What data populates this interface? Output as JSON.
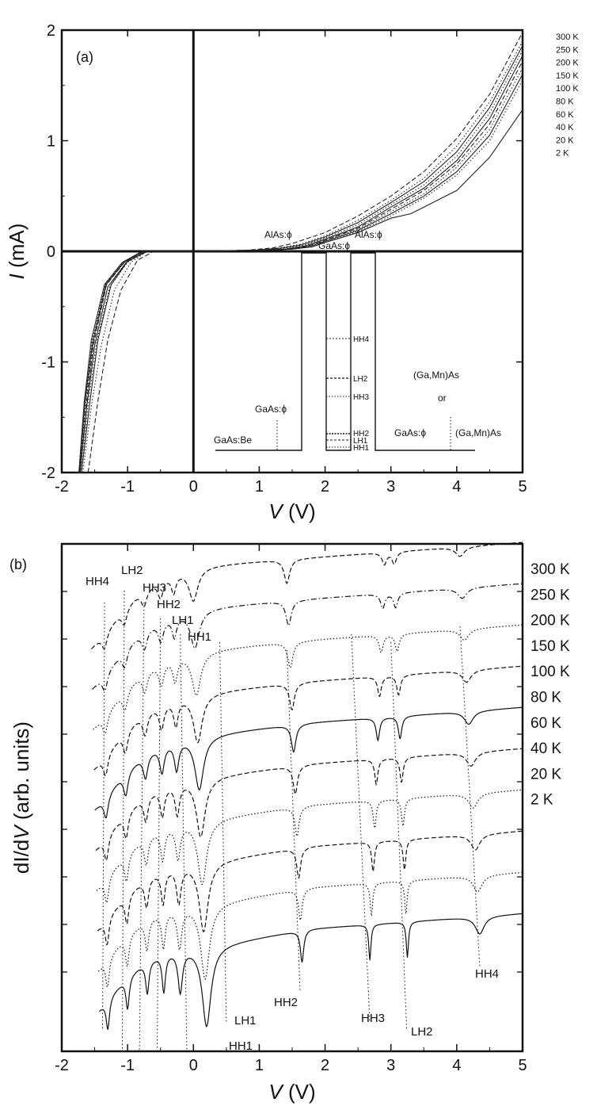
{
  "chart_data": [
    {
      "panel": "(a)",
      "type": "line",
      "xlabel_italic": "V",
      "xlabel_unit": "(V)",
      "ylabel_italic": "I",
      "ylabel_unit": "(mA)",
      "xlim": [
        -2,
        5
      ],
      "ylim": [
        -2,
        2
      ],
      "xticks": [
        "-2",
        "-1",
        "0",
        "1",
        "2",
        "3",
        "4",
        "5"
      ],
      "yticks": [
        "2",
        "1",
        "0",
        "-1",
        "-2"
      ],
      "xtick_values": [
        -2,
        -1,
        0,
        1,
        2,
        3,
        4,
        5
      ],
      "ytick_values": [
        2,
        1,
        0,
        -1,
        -2
      ],
      "legend": [
        "300 K",
        "250 K",
        "200 K",
        "150 K",
        "100 K",
        "80 K",
        "60 K",
        "40 K",
        "20 K",
        "2 K"
      ],
      "series": [
        {
          "name": "300 K",
          "style": "dash",
          "x": [
            -1.6,
            -1.45,
            -1.3,
            -1.1,
            -0.85,
            -0.6,
            0.0,
            0.8,
            1.2,
            1.5,
            2.0,
            2.5,
            3.0,
            3.5,
            4.0,
            4.5,
            5.0
          ],
          "y": [
            -2.0,
            -1.35,
            -0.8,
            -0.35,
            -0.08,
            0.0,
            0.0,
            0.01,
            0.03,
            0.07,
            0.17,
            0.32,
            0.5,
            0.72,
            1.02,
            1.42,
            1.98
          ]
        },
        {
          "name": "250 K",
          "style": "dot",
          "x": [
            -1.68,
            -1.55,
            -1.4,
            -1.2,
            -0.95,
            -0.7,
            0.0,
            0.9,
            1.3,
            1.6,
            2.0,
            2.5,
            3.0,
            3.5,
            4.0,
            4.5,
            5.0
          ],
          "y": [
            -2.0,
            -1.4,
            -0.85,
            -0.35,
            -0.1,
            0.0,
            0.0,
            0.01,
            0.03,
            0.06,
            0.14,
            0.28,
            0.46,
            0.66,
            0.95,
            1.35,
            1.9
          ]
        },
        {
          "name": "200 K",
          "style": "solid",
          "x": [
            -1.7,
            -1.58,
            -1.45,
            -1.25,
            -1.0,
            -0.7,
            0.0,
            0.95,
            1.35,
            1.65,
            2.0,
            2.5,
            3.0,
            3.5,
            4.0,
            4.5,
            5.0
          ],
          "y": [
            -2.0,
            -1.4,
            -0.8,
            -0.3,
            -0.09,
            0.0,
            0.0,
            0.01,
            0.03,
            0.06,
            0.13,
            0.26,
            0.44,
            0.63,
            0.9,
            1.3,
            1.86
          ]
        },
        {
          "name": "150 K",
          "style": "dot",
          "x": [
            -1.7,
            -1.6,
            -1.47,
            -1.27,
            -1.0,
            -0.72,
            0.0,
            1.0,
            1.4,
            1.7,
            2.0,
            2.5,
            3.0,
            3.5,
            4.0,
            4.5,
            5.0
          ],
          "y": [
            -2.0,
            -1.38,
            -0.82,
            -0.32,
            -0.1,
            0.0,
            0.0,
            0.01,
            0.03,
            0.06,
            0.12,
            0.24,
            0.42,
            0.6,
            0.86,
            1.25,
            1.82
          ]
        },
        {
          "name": "100 K",
          "style": "solid",
          "x": [
            -1.72,
            -1.62,
            -1.5,
            -1.3,
            -1.02,
            -0.72,
            0.0,
            1.0,
            1.4,
            1.7,
            2.0,
            2.5,
            3.0,
            3.5,
            4.0,
            4.5,
            5.0
          ],
          "y": [
            -2.0,
            -1.4,
            -0.85,
            -0.32,
            -0.1,
            0.0,
            0.0,
            0.01,
            0.02,
            0.05,
            0.11,
            0.22,
            0.4,
            0.57,
            0.82,
            1.2,
            1.77
          ]
        },
        {
          "name": "80 K",
          "style": "dash",
          "x": [
            -1.72,
            -1.63,
            -1.52,
            -1.32,
            -1.05,
            -0.75,
            0.0,
            1.05,
            1.45,
            1.75,
            2.0,
            2.5,
            3.0,
            3.5,
            4.0,
            4.5,
            5.0
          ],
          "y": [
            -2.0,
            -1.4,
            -0.85,
            -0.3,
            -0.1,
            0.0,
            0.0,
            0.01,
            0.02,
            0.05,
            0.1,
            0.21,
            0.38,
            0.55,
            0.79,
            1.15,
            1.72
          ]
        },
        {
          "name": "60 K",
          "style": "dot",
          "x": [
            -1.72,
            -1.64,
            -1.52,
            -1.32,
            -1.05,
            -0.75,
            0.0,
            1.05,
            1.45,
            1.75,
            2.0,
            2.5,
            3.0,
            3.5,
            4.0,
            4.5,
            5.0
          ],
          "y": [
            -2.0,
            -1.38,
            -0.83,
            -0.3,
            -0.1,
            0.0,
            0.0,
            0.01,
            0.02,
            0.05,
            0.1,
            0.2,
            0.36,
            0.52,
            0.76,
            1.1,
            1.66
          ]
        },
        {
          "name": "40 K",
          "style": "solid",
          "x": [
            -1.73,
            -1.65,
            -1.53,
            -1.33,
            -1.06,
            -0.76,
            0.0,
            1.1,
            1.5,
            1.8,
            2.0,
            2.5,
            3.0,
            3.5,
            4.0,
            4.5,
            5.0
          ],
          "y": [
            -2.0,
            -1.38,
            -0.82,
            -0.3,
            -0.1,
            0.0,
            0.0,
            0.01,
            0.02,
            0.05,
            0.09,
            0.19,
            0.34,
            0.5,
            0.72,
            1.05,
            1.6
          ]
        },
        {
          "name": "20 K",
          "style": "dot",
          "x": [
            -1.73,
            -1.65,
            -1.54,
            -1.34,
            -1.07,
            -0.77,
            0.0,
            1.1,
            1.5,
            1.8,
            2.0,
            2.5,
            3.0,
            3.5,
            4.0,
            4.5,
            5.0
          ],
          "y": [
            -2.0,
            -1.37,
            -0.82,
            -0.3,
            -0.1,
            0.0,
            0.0,
            0.01,
            0.02,
            0.04,
            0.08,
            0.18,
            0.32,
            0.48,
            0.69,
            1.0,
            1.55
          ]
        },
        {
          "name": "2 K",
          "style": "solid",
          "x": [
            -1.74,
            -1.66,
            -1.55,
            -1.35,
            -1.08,
            -0.78,
            0.0,
            1.1,
            1.5,
            1.8,
            2.0,
            2.5,
            3.0,
            3.3,
            3.5,
            4.0,
            4.5,
            5.0
          ],
          "y": [
            -2.0,
            -1.37,
            -0.8,
            -0.3,
            -0.1,
            0.0,
            0.0,
            0.01,
            0.02,
            0.04,
            0.08,
            0.17,
            0.3,
            0.34,
            0.4,
            0.55,
            0.85,
            1.28
          ]
        }
      ],
      "inset_labels": [
        "AlAs:ϕ",
        "GaAs:ϕ",
        "AlAs:ϕ",
        "(Ga,Mn)As",
        "or",
        "GaAs:ϕ",
        "GaAs:Be",
        "GaAs:ϕ",
        "(Ga,Mn)As"
      ],
      "inset_levels": [
        "HH4",
        "LH2",
        "HH3",
        "HH2",
        "LH1",
        "HH1"
      ]
    },
    {
      "panel": "(b)",
      "type": "line",
      "xlabel_italic": "V",
      "xlabel_unit": "(V)",
      "ylabel_parts": [
        "dI/d",
        "V",
        " (arb. units)"
      ],
      "xlim": [
        -2,
        5
      ],
      "xticks": [
        "-2",
        "-1",
        "0",
        "1",
        "2",
        "3",
        "4",
        "5"
      ],
      "xtick_values": [
        -2,
        -1,
        0,
        1,
        2,
        3,
        4,
        5
      ],
      "legend": [
        "300 K",
        "250 K",
        "200 K",
        "150 K",
        "100 K",
        "80 K",
        "60 K",
        "40 K",
        "20 K",
        "2 K"
      ],
      "offsets": [
        0.0,
        1.0,
        2.0,
        3.0,
        4.0,
        5.0,
        6.0,
        7.0,
        8.0,
        9.0
      ],
      "dip_labels_top": [
        "HH4",
        "LH2",
        "HH3",
        "HH2",
        "LH1",
        "HH1"
      ],
      "dip_labels_bottom": [
        "LH1",
        "HH1",
        "HH2",
        "HH3",
        "LH2",
        "HH4"
      ],
      "dip_positions_2K": {
        "HH1": 0.2,
        "LH1": 0.45,
        "HH2": 1.65,
        "HH3": 2.68,
        "LH2": 3.24,
        "HH4": 4.35
      },
      "dip_positions_300K": {
        "HH1": 0.0,
        "HH2": 1.42,
        "HH3": 2.9,
        "LH2": 3.05,
        "HH4": 4.05
      }
    }
  ]
}
